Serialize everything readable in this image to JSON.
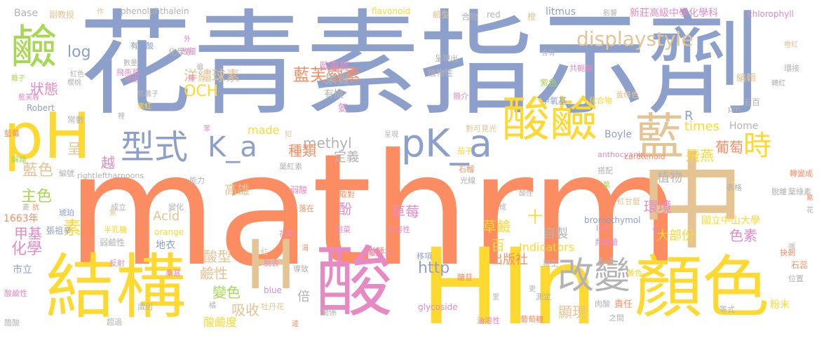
{
  "words": [
    {
      "text": "mathrm",
      "color": "#fc8d62"
    },
    {
      "text": "花青素指示劑",
      "color": "#8da0cb"
    },
    {
      "text": "HIn",
      "color": "#ffd92f"
    },
    {
      "text": "中",
      "color": "#e5c494"
    },
    {
      "text": "顏色",
      "color": "#ffd92f"
    },
    {
      "text": "結構",
      "color": "#ffd92f"
    },
    {
      "text": "酸",
      "color": "#e78ac3"
    },
    {
      "text": "pH",
      "color": "#ffd92f"
    },
    {
      "text": "鹼",
      "color": "#a6d854"
    },
    {
      "text": "藍",
      "color": "#e5c494"
    },
    {
      "text": "酸鹼",
      "color": "#ffd92f"
    },
    {
      "text": "pK_a",
      "color": "#8da0cb"
    },
    {
      "text": "H",
      "color": "#e5c494"
    },
    {
      "text": "改變",
      "color": "#b3b3b3"
    },
    {
      "text": "型式",
      "color": "#8da0cb"
    },
    {
      "text": "K_a",
      "color": "#8da0cb"
    },
    {
      "text": "時",
      "color": "#ffd92f"
    },
    {
      "text": "displaystyle",
      "color": "#e5c494"
    },
    {
      "text": "藍芙蓉素",
      "color": "#fc8d62"
    },
    {
      "text": "洋繡球素",
      "color": "#e5c494"
    },
    {
      "text": "log",
      "color": "#8da0cb"
    },
    {
      "text": "狀態",
      "color": "#e78ac3"
    },
    {
      "text": "果實",
      "color": "#b3b3b3"
    },
    {
      "text": "OCH",
      "color": "#ffd92f"
    },
    {
      "text": "methyl",
      "color": "#b3b3b3"
    },
    {
      "text": "種類",
      "color": "#fc8d62"
    },
    {
      "text": "定義",
      "color": "#b3b3b3"
    },
    {
      "text": "藍色",
      "color": "#e5c494"
    },
    {
      "text": "主色",
      "color": "#a6d854"
    },
    {
      "text": "素",
      "color": "#ffd92f"
    },
    {
      "text": "甲基",
      "color": "#e78ac3"
    },
    {
      "text": "化學",
      "color": "#e78ac3"
    },
    {
      "text": "呈",
      "color": "#e5c494"
    },
    {
      "text": "越",
      "color": "#e78ac3"
    },
    {
      "text": "飛燕",
      "color": "#ffd92f"
    },
    {
      "text": "葡萄",
      "color": "#fc8d62"
    },
    {
      "text": "times",
      "color": "#ffd92f"
    },
    {
      "text": "Home",
      "color": "#b3b3b3"
    },
    {
      "text": "R",
      "color": "#8da0cb"
    },
    {
      "text": "植物",
      "color": "#b3b3b3"
    },
    {
      "text": "環境",
      "color": "#e78ac3"
    },
    {
      "text": "大部份",
      "color": "#ffd92f"
    },
    {
      "text": "色素",
      "color": "#e78ac3"
    },
    {
      "text": "高雄",
      "color": "#e5c494"
    },
    {
      "text": "酚",
      "color": "#e78ac3"
    },
    {
      "text": "草莓",
      "color": "#e78ac3"
    },
    {
      "text": "草鹼",
      "color": "#ffd92f"
    },
    {
      "text": "十",
      "color": "#ffd92f"
    },
    {
      "text": "百",
      "color": "#ffd92f"
    },
    {
      "text": "自製",
      "color": "#b3b3b3"
    },
    {
      "text": "出版社",
      "color": "#fc8d62"
    },
    {
      "text": "http",
      "color": "#8da0cb"
    },
    {
      "text": "Indicators",
      "color": "#ffd92f"
    },
    {
      "text": "酸型",
      "color": "#e5c494"
    },
    {
      "text": "鹼性",
      "color": "#e5c494"
    },
    {
      "text": "變色",
      "color": "#a6d854"
    },
    {
      "text": "吸收",
      "color": "#e5c494"
    },
    {
      "text": "倍",
      "color": "#b3b3b3"
    },
    {
      "text": "顯現",
      "color": "#e5c494"
    },
    {
      "text": "酸鹼度",
      "color": "#ffd92f"
    },
    {
      "text": "Acid",
      "color": "#e5c494"
    },
    {
      "text": "Base",
      "color": "#b3b3b3"
    },
    {
      "text": "副教授",
      "color": "#e5c494"
    },
    {
      "text": "作",
      "color": "#e5c494"
    },
    {
      "text": "phenolphthalein",
      "color": "#b3b3b3"
    },
    {
      "text": "flavonoid",
      "color": "#ffd92f"
    },
    {
      "text": "鹼型",
      "color": "#e5c494"
    },
    {
      "text": "合物",
      "color": "#b3b3b3"
    },
    {
      "text": "red",
      "color": "#b3b3b3"
    },
    {
      "text": "橙",
      "color": "#e5c494"
    },
    {
      "text": "litmus",
      "color": "#8da0cb"
    },
    {
      "text": "影響",
      "color": "#b3b3b3"
    },
    {
      "text": "新莊高級中學化學科",
      "color": "#e78ac3"
    },
    {
      "text": "chlorophyll",
      "color": "#e78ac3"
    },
    {
      "text": "化學系",
      "color": "#b3b3b3"
    },
    {
      "text": "歐惠郡",
      "color": "#e78ac3"
    },
    {
      "text": "植物性",
      "color": "#b3b3b3"
    },
    {
      "text": "有機",
      "color": "#b3b3b3"
    },
    {
      "text": "氨",
      "color": "#e78ac3"
    },
    {
      "text": "共軛酸",
      "color": "#e78ac3"
    },
    {
      "text": "編輯",
      "color": "#e5c494"
    },
    {
      "text": "五百",
      "color": "#b3b3b3"
    },
    {
      "text": "紫色",
      "color": "#a6d854"
    },
    {
      "text": "甲氧基",
      "color": "#8da0cb"
    },
    {
      "text": "made",
      "color": "#ffd92f"
    },
    {
      "text": "Boyle",
      "color": "#8da0cb"
    },
    {
      "text": "pm",
      "color": "#b3b3b3"
    },
    {
      "text": "Robert",
      "color": "#8da0cb"
    },
    {
      "text": "常數",
      "color": "#b3b3b3"
    },
    {
      "text": "1663年",
      "color": "#fc8d62"
    },
    {
      "text": "張祖辛",
      "color": "#8da0cb"
    },
    {
      "text": "市立",
      "color": "#8da0cb"
    },
    {
      "text": "rightleftharpoons",
      "color": "#b3b3b3"
    },
    {
      "text": "弱鹼性",
      "color": "#b3b3b3"
    },
    {
      "text": "地衣",
      "color": "#8da0cb"
    },
    {
      "text": "orange",
      "color": "#ffd92f"
    },
    {
      "text": "bromothymol",
      "color": "#8da0cb"
    },
    {
      "text": "InH",
      "color": "#e78ac3"
    },
    {
      "text": "國立中山大學",
      "color": "#ffd92f"
    },
    {
      "text": "石蕊",
      "color": "#fc8d62"
    },
    {
      "text": "粉末",
      "color": "#ffd92f"
    },
    {
      "text": "責任",
      "color": "#fc8d62"
    },
    {
      "text": "glycoside",
      "color": "#e78ac3"
    },
    {
      "text": "blue",
      "color": "#e78ac3"
    },
    {
      "text": "牡丹花",
      "color": "#e5c494"
    },
    {
      "text": "anthocyanin",
      "color": "#e78ac3"
    },
    {
      "text": "carotenoid",
      "color": "#fc8d62"
    },
    {
      "text": "弱酸",
      "color": "#e78ac3"
    },
    {
      "text": "老師",
      "color": "#fc8d62"
    },
    {
      "text": "水溶性",
      "color": "#e78ac3"
    },
    {
      "text": "葡萄糖",
      "color": "#fc8d62"
    },
    {
      "text": "油溶性",
      "color": "#e78ac3"
    },
    {
      "text": "測定",
      "color": "#b3b3b3"
    },
    {
      "text": "共軛鹼",
      "color": "#e78ac3"
    },
    {
      "text": "覆盆子",
      "color": "#e78ac3"
    },
    {
      "text": "飛燕草",
      "color": "#e78ac3"
    },
    {
      "text": "有機酸",
      "color": "#8da0cb"
    },
    {
      "text": "改接",
      "color": "#e78ac3"
    },
    {
      "text": "呈現出",
      "color": "#b3b3b3"
    },
    {
      "text": "紅甘藍",
      "color": "#e5c494"
    },
    {
      "text": "光線",
      "color": "#b3b3b3"
    },
    {
      "text": "脫離",
      "color": "#b3b3b3"
    },
    {
      "text": "葉綠素",
      "color": "#b3b3b3"
    },
    {
      "text": "轉變成",
      "color": "#fc8d62"
    },
    {
      "text": "變化",
      "color": "#b3b3b3"
    },
    {
      "text": "成立",
      "color": "#b3b3b3"
    },
    {
      "text": "表格",
      "color": "#b3b3b3"
    },
    {
      "text": "化合物",
      "color": "#ffd92f"
    },
    {
      "text": "環接",
      "color": "#b3b3b3"
    },
    {
      "text": "黃綠色",
      "color": "#e5c494"
    },
    {
      "text": "對可見光",
      "color": "#e5c494"
    },
    {
      "text": "茄子",
      "color": "#ffd92f"
    },
    {
      "text": "石榴",
      "color": "#fc8d62"
    },
    {
      "text": "葉紅素",
      "color": "#b3b3b3"
    },
    {
      "text": "搭配",
      "color": "#b3b3b3"
    },
    {
      "text": "取對",
      "color": "#fc8d62"
    },
    {
      "text": "落在",
      "color": "#fc8d62"
    },
    {
      "text": "甜菜",
      "color": "#e78ac3"
    },
    {
      "text": "移項",
      "color": "#8da0cb"
    },
    {
      "text": "發生",
      "color": "#b3b3b3"
    },
    {
      "text": "醣苷",
      "color": "#fc8d62"
    },
    {
      "text": "黃色",
      "color": "#ffd92f"
    },
    {
      "text": "肉酸",
      "color": "#b3b3b3"
    },
    {
      "text": "之間",
      "color": "#b3b3b3"
    },
    {
      "text": "等式",
      "color": "#b3b3b3"
    },
    {
      "text": "位置",
      "color": "#b3b3b3"
    },
    {
      "text": "抉剝",
      "color": "#fc8d62"
    },
    {
      "text": "脫去",
      "color": "#e78ac3"
    },
    {
      "text": "導致",
      "color": "#b3b3b3"
    },
    {
      "text": "關係",
      "color": "#b3b3b3"
    },
    {
      "text": "識別",
      "color": "#b3b3b3"
    },
    {
      "text": "超過",
      "color": "#b3b3b3"
    },
    {
      "text": "桑葚",
      "color": "#e78ac3"
    },
    {
      "text": "反射",
      "color": "#e78ac3"
    },
    {
      "text": "半乳糖",
      "color": "#ffd92f"
    },
    {
      "text": "琥珀",
      "color": "#8da0cb"
    },
    {
      "text": "編號",
      "color": "#b3b3b3"
    },
    {
      "text": "解離",
      "color": "#a6d854"
    },
    {
      "text": "藍莓",
      "color": "#fc8d62"
    },
    {
      "text": "醋酸",
      "color": "#b3b3b3"
    },
    {
      "text": "酸鹼性",
      "color": "#e78ac3"
    },
    {
      "text": "能力",
      "color": "#b3b3b3"
    },
    {
      "text": "簡介",
      "color": "#e78ac3"
    },
    {
      "text": "櫻桃",
      "color": "#b3b3b3"
    },
    {
      "text": "紅色",
      "color": "#b3b3b3"
    },
    {
      "text": "平衡",
      "color": "#e78ac3"
    },
    {
      "text": "數量",
      "color": "#b3b3b3"
    },
    {
      "text": "氫離子",
      "color": "#b3b3b3"
    },
    {
      "text": "紫紅",
      "color": "#ffd92f"
    },
    {
      "text": "離子",
      "color": "#a6d854"
    },
    {
      "text": "藍芙蓉",
      "color": "#e78ac3"
    },
    {
      "text": "酸性",
      "color": "#b3b3b3"
    },
    {
      "text": "紅",
      "color": "#e5c494"
    },
    {
      "text": "外",
      "color": "#e78ac3"
    },
    {
      "text": "含有",
      "color": "#b3b3b3"
    },
    {
      "text": "橙紅",
      "color": "#e5c494"
    },
    {
      "text": "知",
      "color": "#e5c494"
    },
    {
      "text": "呈現",
      "color": "#b3b3b3"
    },
    {
      "text": "花果",
      "color": "#e78ac3"
    },
    {
      "text": "紫",
      "color": "#e5c494"
    },
    {
      "text": "抗",
      "color": "#fc8d62"
    },
    {
      "text": "橘",
      "color": "#b3b3b3"
    },
    {
      "text": "裡",
      "color": "#b3b3b3"
    },
    {
      "text": "類",
      "color": "#e78ac3"
    },
    {
      "text": "偏",
      "color": "#b3b3b3"
    },
    {
      "text": "更",
      "color": "#b3b3b3"
    },
    {
      "text": "化",
      "color": "#e78ac3"
    },
    {
      "text": "強",
      "color": "#b3b3b3"
    },
    {
      "text": "花",
      "color": "#b3b3b3"
    },
    {
      "text": "葉",
      "color": "#a6d854"
    },
    {
      "text": "成",
      "color": "#b3b3b3"
    },
    {
      "text": "里",
      "color": "#b3b3b3"
    },
    {
      "text": "涓",
      "color": "#fc8d62"
    },
    {
      "text": "逵",
      "color": "#fc8d62"
    },
    {
      "text": "苯",
      "color": "#e78ac3"
    },
    {
      "text": "氰",
      "color": "#fc8d62"
    },
    {
      "text": "轉紅",
      "color": "#b3b3b3"
    },
    {
      "text": "菱",
      "color": "#b3b3b3"
    }
  ]
}
